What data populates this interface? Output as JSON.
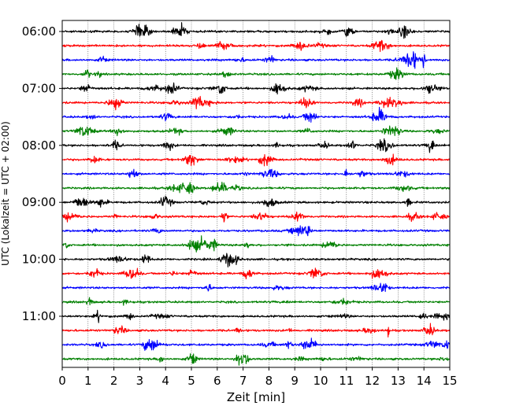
{
  "chart_data": {
    "type": "line",
    "subtype": "helicorder",
    "title": "",
    "xlabel": "Zeit  [min]",
    "ylabel": "UTC (Lokalzeit = UTC + 02:00)",
    "xlim": [
      0,
      15
    ],
    "x_ticks": [
      "0",
      "1",
      "2",
      "3",
      "4",
      "5",
      "6",
      "7",
      "8",
      "9",
      "10",
      "11",
      "12",
      "13",
      "14",
      "15"
    ],
    "y_ticks": [
      {
        "label": "06:00",
        "row": 0
      },
      {
        "label": "07:00",
        "row": 4
      },
      {
        "label": "08:00",
        "row": 8
      },
      {
        "label": "09:00",
        "row": 12
      },
      {
        "label": "10:00",
        "row": 16
      },
      {
        "label": "11:00",
        "row": 20
      }
    ],
    "minutes_per_row": 15,
    "row_count": 24,
    "row_color_cycle": [
      "#000000",
      "#ff0000",
      "#0000ff",
      "#008000"
    ],
    "grid": {
      "x": true,
      "y": false,
      "style": "dotted"
    },
    "notable_events": [
      {
        "row": 2,
        "minute": 14.0,
        "note": "large spike"
      },
      {
        "row": 21,
        "minute": 12.6,
        "note": "large spike"
      }
    ]
  }
}
